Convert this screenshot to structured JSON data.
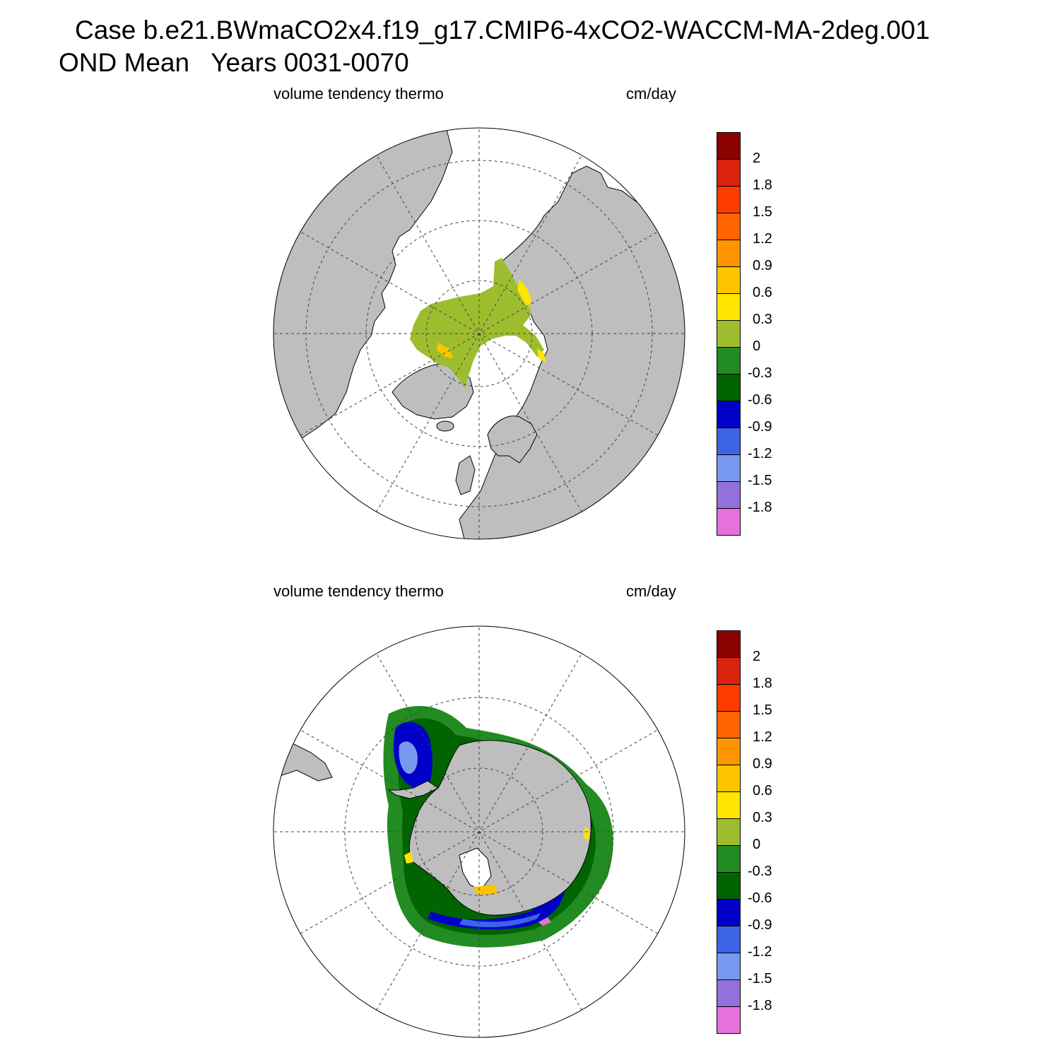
{
  "title": {
    "line1": "Case b.e21.BWmaCO2x4.f19_g17.CMIP6-4xCO2-WACCM-MA-2deg.001",
    "line2": "OND Mean   Years 0031-0070"
  },
  "panels": [
    {
      "id": "north",
      "left_label": "volume tendency thermo",
      "right_label": "cm/day"
    },
    {
      "id": "south",
      "left_label": "volume tendency thermo",
      "right_label": "cm/day"
    }
  ],
  "colorbar": {
    "levels": [
      "2",
      "1.8",
      "1.5",
      "1.2",
      "0.9",
      "0.6",
      "0.3",
      "0",
      "-0.3",
      "-0.6",
      "-0.9",
      "-1.2",
      "-1.5",
      "-1.8"
    ],
    "colors": [
      "#8b0000",
      "#d9230f",
      "#ff3b00",
      "#ff6400",
      "#ff9500",
      "#ffc400",
      "#ffe600",
      "#9dbd2f",
      "#228b22",
      "#006400",
      "#0000c8",
      "#3c64e6",
      "#7898f0",
      "#9370db",
      "#e670dc"
    ]
  },
  "colors": {
    "land": "#bebebe",
    "ocean": "#ffffff",
    "grid": "#444444"
  }
}
